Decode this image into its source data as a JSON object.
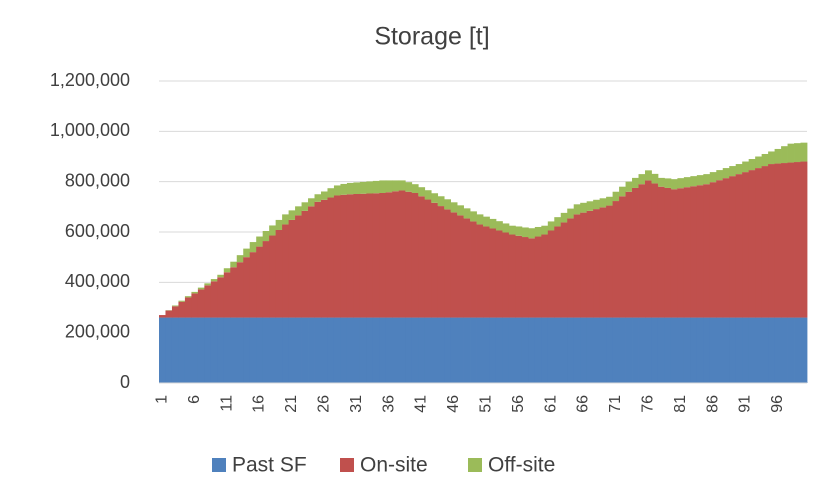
{
  "chart_data": {
    "type": "stacked_bar",
    "title": "Storage [t]",
    "categories": [
      "1",
      null,
      null,
      null,
      null,
      "6",
      null,
      null,
      null,
      null,
      "11",
      null,
      null,
      null,
      null,
      "16",
      null,
      null,
      null,
      null,
      "21",
      null,
      null,
      null,
      null,
      "26",
      null,
      null,
      null,
      null,
      "31",
      null,
      null,
      null,
      null,
      "36",
      null,
      null,
      null,
      null,
      "41",
      null,
      null,
      null,
      null,
      "46",
      null,
      null,
      null,
      null,
      "51",
      null,
      null,
      null,
      null,
      "56",
      null,
      null,
      null,
      null,
      "61",
      null,
      null,
      null,
      null,
      "66",
      null,
      null,
      null,
      null,
      "71",
      null,
      null,
      null,
      null,
      "76",
      null,
      null,
      null,
      null,
      "81",
      null,
      null,
      null,
      null,
      "86",
      null,
      null,
      null,
      null,
      "91",
      null,
      null,
      null,
      null,
      "96",
      null,
      null,
      null,
      null
    ],
    "series": [
      {
        "name": "Past SF",
        "color": "#4f81bd",
        "values": [
          260000,
          260000,
          260000,
          260000,
          260000,
          260000,
          260000,
          260000,
          260000,
          260000,
          260000,
          260000,
          260000,
          260000,
          260000,
          260000,
          260000,
          260000,
          260000,
          260000,
          260000,
          260000,
          260000,
          260000,
          260000,
          260000,
          260000,
          260000,
          260000,
          260000,
          260000,
          260000,
          260000,
          260000,
          260000,
          260000,
          260000,
          260000,
          260000,
          260000,
          260000,
          260000,
          260000,
          260000,
          260000,
          260000,
          260000,
          260000,
          260000,
          260000,
          260000,
          260000,
          260000,
          260000,
          260000,
          260000,
          260000,
          260000,
          260000,
          260000,
          260000,
          260000,
          260000,
          260000,
          260000,
          260000,
          260000,
          260000,
          260000,
          260000,
          260000,
          260000,
          260000,
          260000,
          260000,
          260000,
          260000,
          260000,
          260000,
          260000,
          260000,
          260000,
          260000,
          260000,
          260000,
          260000,
          260000,
          260000,
          260000,
          260000,
          260000,
          260000,
          260000,
          260000,
          260000,
          260000,
          260000,
          260000,
          260000,
          260000
        ]
      },
      {
        "name": "On-site",
        "color": "#c0504d",
        "values": [
          10000,
          28000,
          45000,
          63000,
          80000,
          96000,
          112000,
          128000,
          144000,
          160000,
          180000,
          200000,
          220000,
          240000,
          260000,
          282000,
          304000,
          326000,
          348000,
          370000,
          388000,
          406000,
          424000,
          442000,
          460000,
          468000,
          477000,
          485000,
          488000,
          490000,
          491000,
          492000,
          493000,
          494000,
          495000,
          498000,
          502000,
          505000,
          500000,
          495000,
          482000,
          469000,
          456000,
          443000,
          430000,
          418000,
          406000,
          394000,
          382000,
          370000,
          362000,
          354000,
          346000,
          338000,
          330000,
          325000,
          320000,
          315000,
          322000,
          330000,
          346000,
          362000,
          378000,
          394000,
          410000,
          417000,
          424000,
          431000,
          438000,
          445000,
          463000,
          482000,
          500000,
          515000,
          530000,
          545000,
          533000,
          520000,
          515000,
          510000,
          514000,
          518000,
          522000,
          526000,
          530000,
          538000,
          546000,
          554000,
          562000,
          570000,
          578000,
          586000,
          594000,
          602000,
          610000,
          612000,
          614000,
          616000,
          618000,
          620000
        ]
      },
      {
        "name": "Off-site",
        "color": "#9bbb59",
        "values": [
          0,
          1000,
          3000,
          4000,
          5000,
          6000,
          7000,
          8000,
          9000,
          10000,
          16000,
          22000,
          28000,
          34000,
          40000,
          40000,
          40000,
          40000,
          40000,
          40000,
          38000,
          36000,
          34000,
          32000,
          30000,
          33000,
          37000,
          40000,
          43000,
          45000,
          46000,
          47000,
          48000,
          49000,
          50000,
          47000,
          43000,
          40000,
          38000,
          35000,
          36000,
          37000,
          38000,
          39000,
          40000,
          40000,
          40000,
          40000,
          40000,
          40000,
          39000,
          38000,
          37000,
          36000,
          35000,
          37000,
          38000,
          40000,
          38000,
          35000,
          36000,
          37000,
          38000,
          39000,
          40000,
          39000,
          38000,
          37000,
          36000,
          35000,
          37000,
          38000,
          40000,
          40000,
          40000,
          40000,
          38000,
          35000,
          38000,
          40000,
          40000,
          40000,
          40000,
          40000,
          40000,
          40000,
          40000,
          40000,
          40000,
          40000,
          42000,
          44000,
          46000,
          48000,
          50000,
          58000,
          67000,
          75000,
          75000,
          75000
        ]
      }
    ],
    "ylim": [
      0,
      1200000
    ],
    "yticks": [
      0,
      {
        "value": 200000,
        "label": "200,000"
      },
      {
        "value": 400000,
        "label": "400,000"
      },
      {
        "value": 600000,
        "label": "600,000"
      },
      {
        "value": 800000,
        "label": "800,000"
      },
      {
        "value": 1000000,
        "label": "1,000,000"
      },
      {
        "value": 1200000,
        "label": "1,200,000"
      }
    ],
    "grid": true,
    "legend": "bottom"
  }
}
